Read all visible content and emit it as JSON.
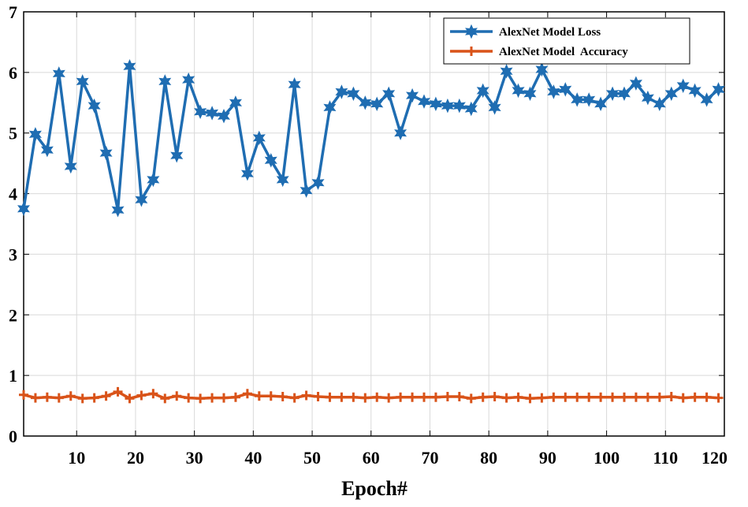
{
  "chart_data": {
    "type": "line",
    "title": "",
    "xlabel": "Epoch#",
    "ylabel": "",
    "xlim": [
      1,
      120
    ],
    "ylim": [
      0,
      7
    ],
    "grid": true,
    "legend_position": "top-right",
    "x_ticks": [
      10,
      20,
      30,
      40,
      50,
      60,
      70,
      80,
      90,
      100,
      110,
      120
    ],
    "y_ticks": [
      0,
      1,
      2,
      3,
      4,
      5,
      6,
      7
    ],
    "x": [
      1,
      3,
      5,
      7,
      9,
      11,
      13,
      15,
      17,
      19,
      21,
      23,
      25,
      27,
      29,
      31,
      33,
      35,
      37,
      39,
      41,
      43,
      45,
      47,
      49,
      51,
      53,
      55,
      57,
      59,
      61,
      63,
      65,
      67,
      69,
      71,
      73,
      75,
      77,
      79,
      81,
      83,
      85,
      87,
      89,
      91,
      93,
      95,
      97,
      99,
      101,
      103,
      105,
      107,
      109,
      111,
      113,
      115,
      117,
      119
    ],
    "series": [
      {
        "name": "AlexNet Model Loss",
        "color": "#1f6db2",
        "marker": "hexagram",
        "values": [
          3.75,
          4.98,
          4.72,
          5.98,
          4.45,
          5.85,
          5.45,
          4.67,
          3.73,
          6.1,
          3.9,
          4.23,
          5.85,
          4.63,
          5.88,
          5.35,
          5.33,
          5.28,
          5.5,
          4.33,
          4.92,
          4.55,
          4.23,
          5.8,
          4.05,
          4.18,
          5.42,
          5.68,
          5.65,
          5.5,
          5.48,
          5.65,
          5.0,
          5.62,
          5.52,
          5.48,
          5.45,
          5.45,
          5.4,
          5.7,
          5.42,
          6.02,
          5.7,
          5.65,
          6.05,
          5.68,
          5.72,
          5.55,
          5.55,
          5.48,
          5.65,
          5.65,
          5.82,
          5.58,
          5.48,
          5.65,
          5.78,
          5.7,
          5.55,
          5.72
        ]
      },
      {
        "name": "AlexNet Model  Accuracy",
        "color": "#d95319",
        "marker": "plus",
        "values": [
          0.68,
          0.63,
          0.64,
          0.63,
          0.66,
          0.62,
          0.63,
          0.66,
          0.73,
          0.62,
          0.67,
          0.7,
          0.62,
          0.66,
          0.63,
          0.62,
          0.63,
          0.63,
          0.64,
          0.7,
          0.66,
          0.66,
          0.65,
          0.63,
          0.67,
          0.65,
          0.64,
          0.64,
          0.64,
          0.63,
          0.64,
          0.63,
          0.64,
          0.64,
          0.64,
          0.64,
          0.65,
          0.65,
          0.62,
          0.64,
          0.65,
          0.63,
          0.64,
          0.62,
          0.63,
          0.64,
          0.64,
          0.64,
          0.64,
          0.64,
          0.64,
          0.64,
          0.64,
          0.64,
          0.64,
          0.65,
          0.63,
          0.64,
          0.64,
          0.63
        ]
      }
    ]
  }
}
